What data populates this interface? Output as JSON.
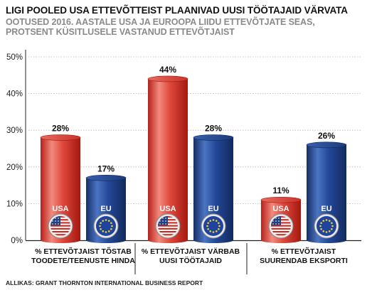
{
  "title": "LIGI POOLED USA ETTEVÕTTEIST PLAANIVAD UUSI TÖÖTAJAID VÄRVATA",
  "subtitle": "OOTUSED 2016. AASTALE USA JA EUROOPA LIIDU ETTEVÕTJATE SEAS, PROTSENT KÜSITLUSELE VASTANUD ETTEVÕTJAIST",
  "source": "ALLIKAS: GRANT THORNTON INTERNATIONAL BUSINESS REPORT",
  "colors": {
    "usa": "#d7332b",
    "eu": "#1d3f82",
    "grid": "#b5b5b5"
  },
  "chart_data": {
    "type": "bar",
    "categories": [
      "% ETTEVÕTJAIST TÕSTAB\nTOODETE/TEENUSTE HINDA",
      "% ETTEVÕTJAIST VÄRBAB\nUUSI TÖÖTAJAID",
      "% ETTEVÕTJAIST\nSUURENDAB EKSPORTI"
    ],
    "series": [
      {
        "name": "USA",
        "values": [
          28,
          44,
          11
        ],
        "labels": [
          "28%",
          "44%",
          "11%"
        ]
      },
      {
        "name": "EU",
        "values": [
          17,
          28,
          26
        ],
        "labels": [
          "17%",
          "28%",
          "26%"
        ]
      }
    ],
    "ylim": [
      0,
      50
    ],
    "yticks": [
      0,
      10,
      20,
      30,
      40,
      50
    ],
    "ytick_labels": [
      "0%",
      "10%",
      "20%",
      "30%",
      "40%",
      "50%"
    ],
    "grid": true
  }
}
